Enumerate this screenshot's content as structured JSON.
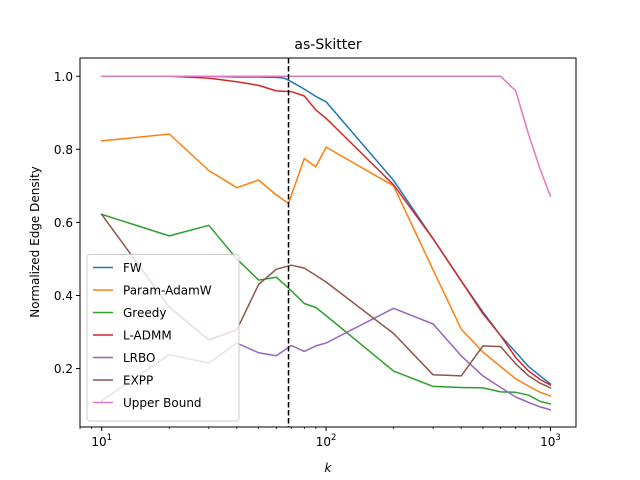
{
  "chart_data": {
    "type": "line",
    "title": "as-Skitter",
    "xlabel": "k",
    "ylabel": "Normalized Edge Density",
    "xscale": "log",
    "xlim": [
      8,
      1300
    ],
    "ylim": [
      0.04,
      1.05
    ],
    "x_ticks": [
      {
        "value": 10,
        "base": "10",
        "exp": "1"
      },
      {
        "value": 100,
        "base": "10",
        "exp": "2"
      },
      {
        "value": 1000,
        "base": "10",
        "exp": "3"
      }
    ],
    "y_ticks": [
      {
        "value": 0.2,
        "label": "0.2"
      },
      {
        "value": 0.4,
        "label": "0.4"
      },
      {
        "value": 0.6,
        "label": "0.6"
      },
      {
        "value": 0.8,
        "label": "0.8"
      },
      {
        "value": 1.0,
        "label": "1.0"
      }
    ],
    "vline": {
      "x": 68,
      "style": "dashed",
      "color": "#000000"
    },
    "legend_position": "lower-left",
    "series": [
      {
        "name": "FW",
        "color": "#1f77b4",
        "x": [
          10,
          20,
          30,
          40,
          50,
          60,
          65,
          70,
          80,
          90,
          100,
          200,
          300,
          400,
          500,
          600,
          700,
          800,
          900,
          1000
        ],
        "y": [
          1.0,
          1.0,
          1.0,
          0.998,
          0.998,
          0.997,
          0.995,
          0.985,
          0.965,
          0.945,
          0.93,
          0.715,
          0.555,
          0.44,
          0.355,
          0.29,
          0.245,
          0.205,
          0.18,
          0.158
        ]
      },
      {
        "name": "Param-AdamW",
        "color": "#ff7f0e",
        "x": [
          10,
          20,
          30,
          40,
          50,
          60,
          68,
          80,
          90,
          100,
          200,
          300,
          400,
          500,
          600,
          700,
          800,
          900,
          1000
        ],
        "y": [
          0.823,
          0.842,
          0.742,
          0.695,
          0.716,
          0.675,
          0.652,
          0.775,
          0.752,
          0.806,
          0.7,
          0.47,
          0.308,
          0.245,
          0.205,
          0.172,
          0.152,
          0.135,
          0.125
        ]
      },
      {
        "name": "Greedy",
        "color": "#2ca02c",
        "x": [
          10,
          20,
          30,
          40,
          50,
          60,
          70,
          80,
          90,
          100,
          200,
          300,
          400,
          500,
          600,
          700,
          800,
          900,
          1000
        ],
        "y": [
          0.622,
          0.563,
          0.592,
          0.5,
          0.442,
          0.45,
          0.413,
          0.378,
          0.367,
          0.345,
          0.193,
          0.151,
          0.148,
          0.147,
          0.136,
          0.135,
          0.127,
          0.11,
          0.103
        ]
      },
      {
        "name": "L-ADMM",
        "color": "#d62728",
        "x": [
          10,
          20,
          30,
          40,
          50,
          60,
          70,
          80,
          90,
          100,
          200,
          300,
          400,
          500,
          600,
          700,
          800,
          900,
          1000
        ],
        "y": [
          1.0,
          1.0,
          0.995,
          0.985,
          0.975,
          0.96,
          0.958,
          0.946,
          0.908,
          0.885,
          0.703,
          0.555,
          0.44,
          0.35,
          0.29,
          0.23,
          0.193,
          0.17,
          0.155
        ]
      },
      {
        "name": "LRBO",
        "color": "#9467bd",
        "x": [
          10,
          20,
          30,
          40,
          50,
          60,
          70,
          80,
          90,
          100,
          200,
          300,
          400,
          500,
          600,
          700,
          800,
          900,
          1000
        ],
        "y": [
          0.112,
          0.238,
          0.215,
          0.27,
          0.243,
          0.235,
          0.263,
          0.247,
          0.262,
          0.27,
          0.365,
          0.322,
          0.235,
          0.18,
          0.148,
          0.122,
          0.107,
          0.095,
          0.087
        ]
      },
      {
        "name": "EXPP",
        "color": "#8c564b",
        "x": [
          10,
          20,
          30,
          40,
          50,
          60,
          70,
          80,
          90,
          100,
          200,
          300,
          400,
          500,
          600,
          700,
          800,
          900,
          1000
        ],
        "y": [
          0.622,
          0.368,
          0.278,
          0.306,
          0.43,
          0.472,
          0.483,
          0.475,
          0.455,
          0.437,
          0.296,
          0.183,
          0.18,
          0.262,
          0.26,
          0.213,
          0.18,
          0.16,
          0.147
        ]
      },
      {
        "name": "Upper Bound",
        "color": "#e377c2",
        "x": [
          10,
          20,
          30,
          40,
          50,
          60,
          70,
          80,
          90,
          100,
          200,
          300,
          400,
          500,
          600,
          700,
          800,
          900,
          1000
        ],
        "y": [
          1.0,
          1.0,
          1.0,
          1.0,
          1.0,
          1.0,
          1.0,
          1.0,
          1.0,
          1.0,
          1.0,
          1.0,
          1.0,
          1.0,
          1.0,
          0.96,
          0.84,
          0.745,
          0.672
        ]
      }
    ]
  }
}
